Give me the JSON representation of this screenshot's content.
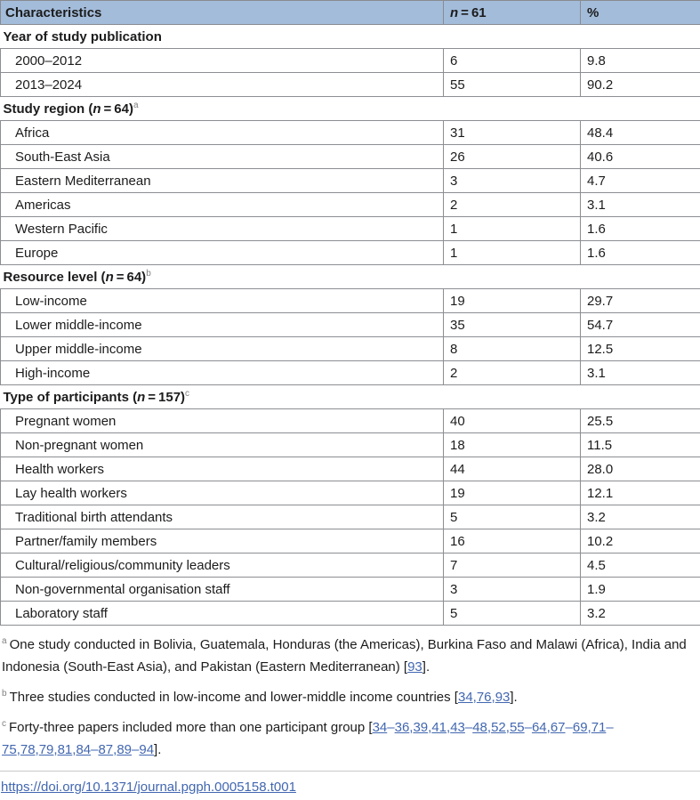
{
  "table": {
    "header": {
      "characteristics": "Characteristics",
      "n_italic": "n",
      "n_rest": " = 61",
      "percent": "%"
    },
    "sections": [
      {
        "title": "Year of study publication",
        "n": null,
        "after_n": null,
        "sup": null,
        "rows": [
          {
            "label": "2000–2012",
            "n": "6",
            "pct": "9.8"
          },
          {
            "label": "2013–2024",
            "n": "55",
            "pct": "90.2"
          }
        ]
      },
      {
        "title": "Study region (",
        "n": "n",
        "after_n": " = 64)",
        "sup": "a",
        "rows": [
          {
            "label": "Africa",
            "n": "31",
            "pct": "48.4"
          },
          {
            "label": "South-East Asia",
            "n": "26",
            "pct": "40.6"
          },
          {
            "label": "Eastern Mediterranean",
            "n": "3",
            "pct": "4.7"
          },
          {
            "label": "Americas",
            "n": "2",
            "pct": "3.1"
          },
          {
            "label": "Western Pacific",
            "n": "1",
            "pct": "1.6"
          },
          {
            "label": "Europe",
            "n": "1",
            "pct": "1.6"
          }
        ]
      },
      {
        "title": "Resource level (",
        "n": "n",
        "after_n": " = 64)",
        "sup": "b",
        "rows": [
          {
            "label": "Low-income",
            "n": "19",
            "pct": "29.7"
          },
          {
            "label": "Lower middle-income",
            "n": "35",
            "pct": "54.7"
          },
          {
            "label": "Upper middle-income",
            "n": "8",
            "pct": "12.5"
          },
          {
            "label": "High-income",
            "n": "2",
            "pct": "3.1"
          }
        ]
      },
      {
        "title": "Type of participants (",
        "n": "n",
        "after_n": " = 157)",
        "sup": "c",
        "rows": [
          {
            "label": "Pregnant women",
            "n": "40",
            "pct": "25.5"
          },
          {
            "label": "Non-pregnant women",
            "n": "18",
            "pct": "11.5"
          },
          {
            "label": "Health workers",
            "n": "44",
            "pct": "28.0"
          },
          {
            "label": "Lay health workers",
            "n": "19",
            "pct": "12.1"
          },
          {
            "label": "Traditional birth attendants",
            "n": "5",
            "pct": "3.2"
          },
          {
            "label": "Partner/family members",
            "n": "16",
            "pct": "10.2"
          },
          {
            "label": "Cultural/religious/community leaders",
            "n": "7",
            "pct": "4.5"
          },
          {
            "label": "Non-governmental organisation staff",
            "n": "3",
            "pct": "1.9"
          },
          {
            "label": "Laboratory staff",
            "n": "5",
            "pct": "3.2"
          }
        ]
      }
    ]
  },
  "footnotes": [
    [
      {
        "t": "sup",
        "v": "a"
      },
      {
        "t": "text",
        "v": "One study conducted in Bolivia, Guatemala, Honduras (the Americas), Burkina Faso and Malawi (Africa), India and Indonesia (South-East Asia), and Pakistan (Eastern Mediterranean) ["
      },
      {
        "t": "link",
        "v": "93"
      },
      {
        "t": "text",
        "v": "]."
      }
    ],
    [
      {
        "t": "sup",
        "v": "b"
      },
      {
        "t": "text",
        "v": "Three studies conducted in low-income and lower-middle income countries ["
      },
      {
        "t": "link",
        "v": "34"
      },
      {
        "t": "sep",
        "v": ","
      },
      {
        "t": "link",
        "v": "76"
      },
      {
        "t": "sep",
        "v": ","
      },
      {
        "t": "link",
        "v": "93"
      },
      {
        "t": "text",
        "v": "]."
      }
    ],
    [
      {
        "t": "sup",
        "v": "c"
      },
      {
        "t": "text",
        "v": "Forty-three papers included more than one participant group ["
      },
      {
        "t": "link",
        "v": "34"
      },
      {
        "t": "sep",
        "v": "–"
      },
      {
        "t": "link",
        "v": "36"
      },
      {
        "t": "sep",
        "v": ","
      },
      {
        "t": "link",
        "v": "39"
      },
      {
        "t": "sep",
        "v": ","
      },
      {
        "t": "link",
        "v": "41"
      },
      {
        "t": "sep",
        "v": ","
      },
      {
        "t": "link",
        "v": "43"
      },
      {
        "t": "sep",
        "v": "–"
      },
      {
        "t": "link",
        "v": "48"
      },
      {
        "t": "sep",
        "v": ","
      },
      {
        "t": "link",
        "v": "52"
      },
      {
        "t": "sep",
        "v": ","
      },
      {
        "t": "link",
        "v": "55"
      },
      {
        "t": "sep",
        "v": "–"
      },
      {
        "t": "link",
        "v": "64"
      },
      {
        "t": "sep",
        "v": ","
      },
      {
        "t": "link",
        "v": "67"
      },
      {
        "t": "sep",
        "v": "–"
      },
      {
        "t": "link",
        "v": "69"
      },
      {
        "t": "sep",
        "v": ","
      },
      {
        "t": "link",
        "v": "71"
      },
      {
        "t": "sep",
        "v": "–"
      },
      {
        "t": "link",
        "v": "75"
      },
      {
        "t": "sep",
        "v": ","
      },
      {
        "t": "link",
        "v": "78"
      },
      {
        "t": "sep",
        "v": ","
      },
      {
        "t": "link",
        "v": "79"
      },
      {
        "t": "sep",
        "v": ","
      },
      {
        "t": "link",
        "v": "81"
      },
      {
        "t": "sep",
        "v": ","
      },
      {
        "t": "link",
        "v": "84"
      },
      {
        "t": "sep",
        "v": "–"
      },
      {
        "t": "link",
        "v": "87"
      },
      {
        "t": "sep",
        "v": ","
      },
      {
        "t": "link",
        "v": "89"
      },
      {
        "t": "sep",
        "v": "–"
      },
      {
        "t": "link",
        "v": "94"
      },
      {
        "t": "text",
        "v": "]."
      }
    ]
  ],
  "doi": "https://doi.org/10.1371/journal.pgph.0005158.t001"
}
